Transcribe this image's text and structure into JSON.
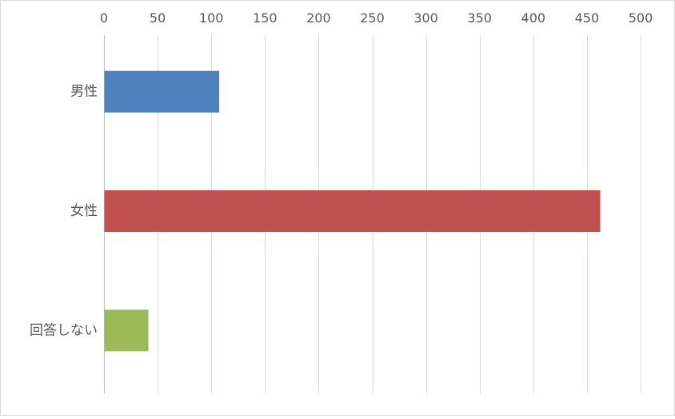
{
  "chart_data": {
    "type": "bar",
    "orientation": "horizontal",
    "categories": [
      "男性",
      "女性",
      "回答しない"
    ],
    "values": [
      107,
      462,
      41
    ],
    "colors": [
      "#4f81bd",
      "#c0504d",
      "#9bbb59"
    ],
    "xlim": [
      0,
      500
    ],
    "xticks": [
      0,
      50,
      100,
      150,
      200,
      250,
      300,
      350,
      400,
      450,
      500
    ],
    "xaxis_position": "top",
    "grid": true,
    "legend": "none"
  }
}
